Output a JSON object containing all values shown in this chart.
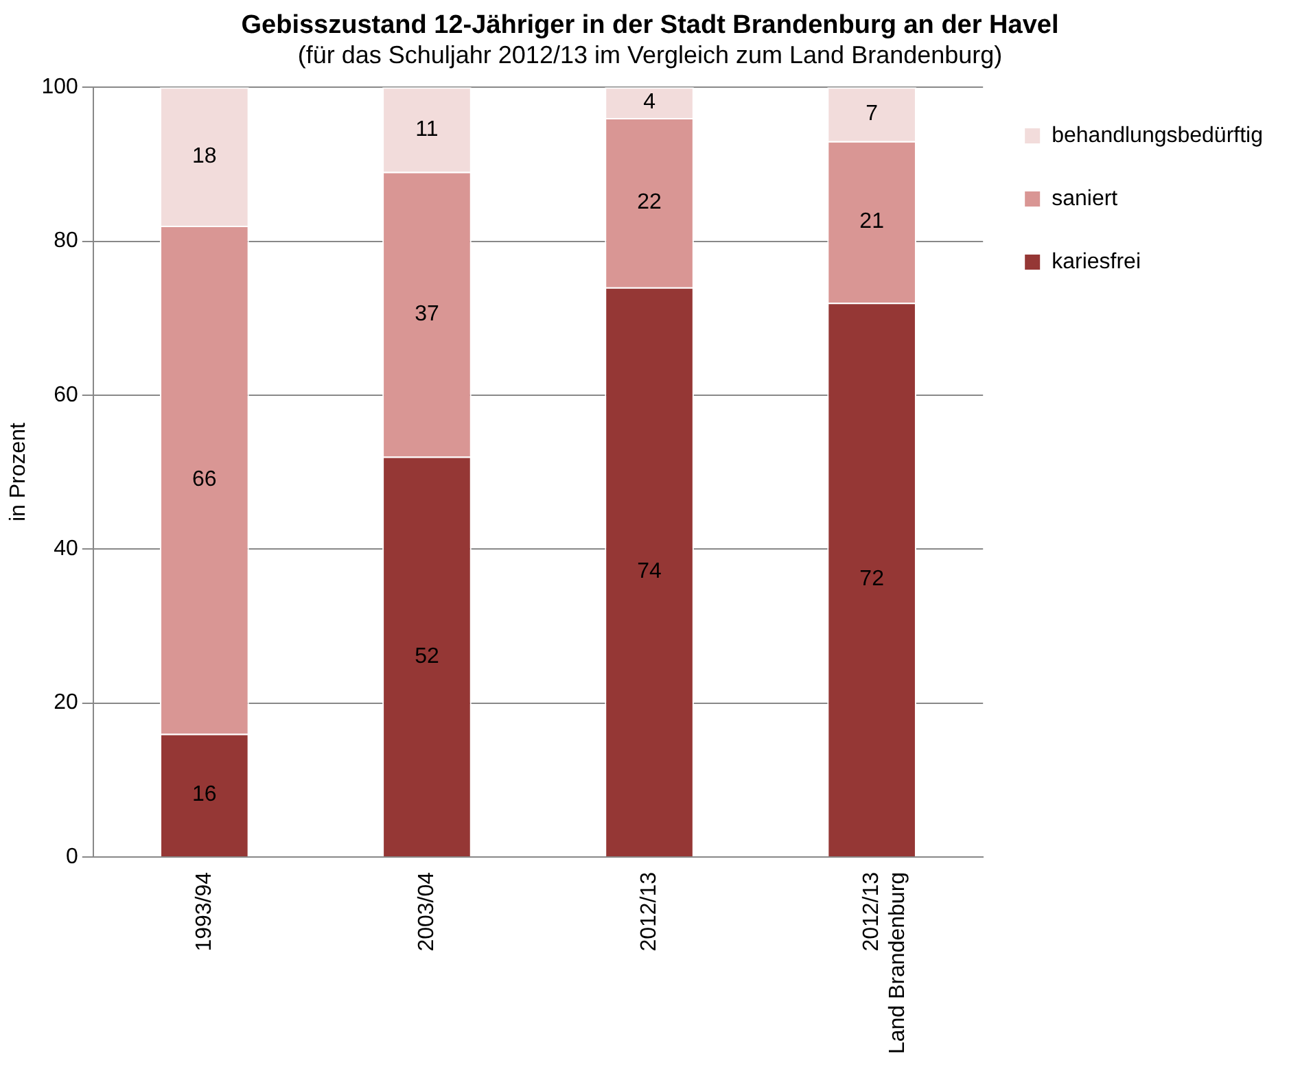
{
  "chart_data": {
    "type": "bar",
    "title": "Gebisszustand 12-Jähriger in der Stadt Brandenburg an der Havel",
    "subtitle": "(für das Schuljahr  2012/13 im Vergleich zum Land Brandenburg)",
    "ylabel": "in Prozent",
    "categories": [
      "1993/94",
      "2003/04",
      "2012/13",
      "2012/13\nLand Brandenburg"
    ],
    "series": [
      {
        "name": "kariesfrei",
        "color": "#953735",
        "values": [
          16,
          52,
          74,
          72
        ]
      },
      {
        "name": "saniert",
        "color": "#d99694",
        "values": [
          66,
          37,
          22,
          21
        ]
      },
      {
        "name": "behandlungsbedürftig",
        "color": "#f2dcdb",
        "values": [
          18,
          11,
          4,
          7
        ]
      }
    ],
    "stacked": true,
    "ylim": [
      0,
      100
    ],
    "yticks": [
      0,
      20,
      40,
      60,
      80,
      100
    ],
    "grid": "y",
    "legend": "right",
    "data_labels": true
  }
}
